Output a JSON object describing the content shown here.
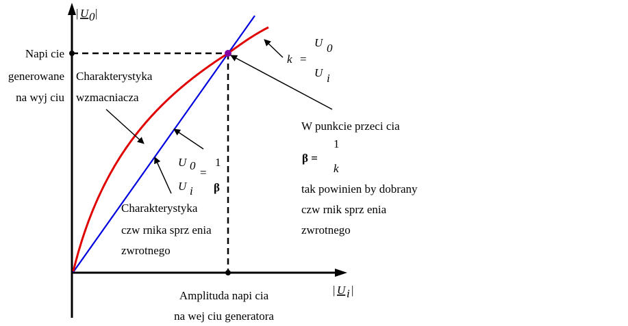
{
  "axes": {
    "y_label": "|U0|",
    "y_label_main": "U",
    "y_label_sub": "0",
    "x_label_main": "U",
    "x_label_sub": "i",
    "bar": "|"
  },
  "labels": {
    "output_voltage": [
      "Napi cie",
      "generowane",
      "na wyj ciu"
    ],
    "amplifier_char": [
      "Charakterystyka",
      "wzmacniacza"
    ],
    "feedback_char": [
      "Charakterystyka",
      "czw rnika sprz    enia",
      "zwrotnego"
    ],
    "input_amplitude": [
      "Amplituda napi cia",
      "na wej ciu generatora"
    ],
    "intersection": [
      "W punkcie przeci cia",
      "tak powinien by  dobrany",
      "czw  rnik sprz    enia",
      "zwrotnego"
    ]
  },
  "formulas": {
    "k_lhs": "k",
    "eq": "=",
    "k_num": "U",
    "k_num_sub": "0",
    "k_den": "U",
    "k_den_sub": "i",
    "ratio_num": "U",
    "ratio_num_sub": "0",
    "ratio_den": "U",
    "ratio_den_sub": "i",
    "ratio_one": "1",
    "beta": "β",
    "beta_eq": "β =",
    "beta_num": "1",
    "beta_den": "k"
  },
  "colors": {
    "amplifier_curve": "#e00000",
    "feedback_line": "#0000e0",
    "intersection_point": "#8000a0",
    "axes": "#000000"
  }
}
